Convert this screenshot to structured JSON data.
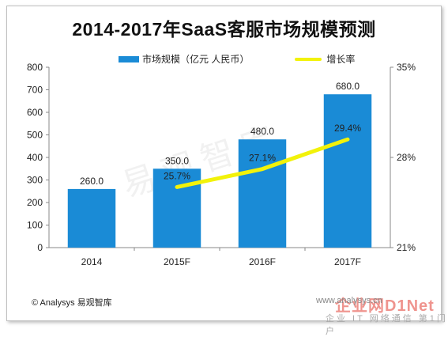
{
  "chart_data": {
    "type": "bar",
    "title": "2014-2017年SaaS客服市场规模预测",
    "categories": [
      "2014",
      "2015F",
      "2016F",
      "2017F"
    ],
    "series": [
      {
        "name": "市场规模（亿元 人民币）",
        "type": "bar",
        "axis": "left",
        "values": [
          260.0,
          350.0,
          480.0,
          680.0
        ],
        "labels": [
          "260.0",
          "350.0",
          "480.0",
          "680.0"
        ]
      },
      {
        "name": "增长率",
        "type": "line",
        "axis": "right",
        "values": [
          null,
          25.7,
          27.1,
          29.4
        ],
        "labels": [
          "",
          "25.7%",
          "27.1%",
          "29.4%"
        ]
      }
    ],
    "ylim": [
      0,
      800
    ],
    "y_ticks": [
      "0",
      "100",
      "200",
      "300",
      "400",
      "500",
      "600",
      "700",
      "800"
    ],
    "y2lim": [
      21,
      35
    ],
    "y2_ticks": [
      "21%",
      "28%",
      "35%"
    ],
    "legend_position": "top",
    "grid": false,
    "colors": {
      "bar": "#1a8bd6",
      "line": "#f2f20a"
    }
  },
  "footer": {
    "copyright": "© Analysys 易观智库",
    "source": "www.analysys.cn",
    "brand": "企业网D1Net",
    "brand_sub": "企业 IT 网络通信 第1门户"
  },
  "watermark": "易观智库"
}
